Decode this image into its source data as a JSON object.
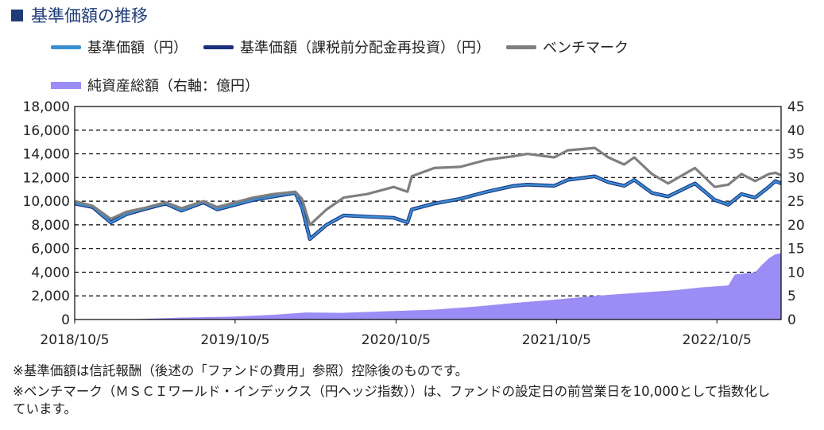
{
  "page": {
    "title": "基準価額の推移",
    "notes": [
      "※基準価額は信託報酬（後述の「ファンドの費用」参照）控除後のものです。",
      "※ベンチマーク（ＭＳＣＩワールド・インデックス（円ヘッジ指数））は、ファンドの設定日の前営業日を10,000として指数化し",
      "ています。"
    ]
  },
  "colors": {
    "nav": "#3a8fd1",
    "nav_reinvest": "#1a2f80",
    "benchmark": "#7f7f7f",
    "assets": "#9b8df5",
    "title_blue": "#1f3c78"
  },
  "chart_data": {
    "type": "line",
    "x_tick_labels": [
      "2018/10/5",
      "2019/10/5",
      "2020/10/5",
      "2021/10/5",
      "2022/10/5"
    ],
    "x_ticks": [
      "2018-10-05",
      "2019-10-05",
      "2020-10-05",
      "2021-10-05",
      "2022-10-05"
    ],
    "x_range": [
      "2018-10-05",
      "2023-02-28"
    ],
    "y_left": {
      "label": "円",
      "range": [
        0,
        18000
      ],
      "ticks": [
        "0",
        "2,000",
        "4,000",
        "6,000",
        "8,000",
        "10,000",
        "12,000",
        "14,000",
        "16,000",
        "18,000"
      ]
    },
    "y_right": {
      "label": "億円",
      "range": [
        0,
        45
      ],
      "ticks": [
        "0",
        "5",
        "10",
        "15",
        "20",
        "25",
        "30",
        "35",
        "40",
        "45"
      ]
    },
    "grid": "horizontal dashed",
    "series": [
      {
        "name": "基準価額（円）",
        "axis": "left",
        "points": [
          [
            "2018-10-05",
            9800
          ],
          [
            "2018-11-15",
            9500
          ],
          [
            "2018-12-26",
            8200
          ],
          [
            "2019-01-31",
            8900
          ],
          [
            "2019-03-10",
            9300
          ],
          [
            "2019-04-30",
            9800
          ],
          [
            "2019-06-05",
            9200
          ],
          [
            "2019-07-25",
            9900
          ],
          [
            "2019-08-25",
            9300
          ],
          [
            "2019-09-25",
            9600
          ],
          [
            "2019-11-15",
            10100
          ],
          [
            "2019-12-31",
            10400
          ],
          [
            "2020-02-19",
            10700
          ],
          [
            "2020-03-05",
            9500
          ],
          [
            "2020-03-23",
            6800
          ],
          [
            "2020-04-30",
            8000
          ],
          [
            "2020-06-08",
            8800
          ],
          [
            "2020-07-31",
            8700
          ],
          [
            "2020-09-30",
            8600
          ],
          [
            "2020-10-31",
            8200
          ],
          [
            "2020-11-10",
            9300
          ],
          [
            "2020-12-31",
            9800
          ],
          [
            "2021-02-28",
            10200
          ],
          [
            "2021-04-30",
            10800
          ],
          [
            "2021-06-30",
            11300
          ],
          [
            "2021-07-31",
            11400
          ],
          [
            "2021-09-30",
            11300
          ],
          [
            "2021-10-31",
            11800
          ],
          [
            "2021-12-31",
            12100
          ],
          [
            "2022-01-31",
            11600
          ],
          [
            "2022-03-08",
            11300
          ],
          [
            "2022-03-31",
            11800
          ],
          [
            "2022-05-10",
            10700
          ],
          [
            "2022-06-16",
            10400
          ],
          [
            "2022-08-16",
            11500
          ],
          [
            "2022-09-30",
            10100
          ],
          [
            "2022-10-31",
            9700
          ],
          [
            "2022-11-30",
            10600
          ],
          [
            "2022-12-31",
            10300
          ],
          [
            "2023-01-31",
            11200
          ],
          [
            "2023-02-15",
            11700
          ],
          [
            "2023-02-28",
            11500
          ]
        ]
      },
      {
        "name": "基準価額（課税前分配金再投資）（円）",
        "axis": "left",
        "points": [
          [
            "2018-10-05",
            9800
          ],
          [
            "2018-11-15",
            9500
          ],
          [
            "2018-12-26",
            8200
          ],
          [
            "2019-01-31",
            8900
          ],
          [
            "2019-03-10",
            9300
          ],
          [
            "2019-04-30",
            9800
          ],
          [
            "2019-06-05",
            9200
          ],
          [
            "2019-07-25",
            9900
          ],
          [
            "2019-08-25",
            9300
          ],
          [
            "2019-09-25",
            9600
          ],
          [
            "2019-11-15",
            10100
          ],
          [
            "2019-12-31",
            10400
          ],
          [
            "2020-02-19",
            10700
          ],
          [
            "2020-03-05",
            9500
          ],
          [
            "2020-03-23",
            6800
          ],
          [
            "2020-04-30",
            8000
          ],
          [
            "2020-06-08",
            8800
          ],
          [
            "2020-07-31",
            8700
          ],
          [
            "2020-09-30",
            8600
          ],
          [
            "2020-10-31",
            8200
          ],
          [
            "2020-11-10",
            9300
          ],
          [
            "2020-12-31",
            9800
          ],
          [
            "2021-02-28",
            10200
          ],
          [
            "2021-04-30",
            10800
          ],
          [
            "2021-06-30",
            11300
          ],
          [
            "2021-07-31",
            11400
          ],
          [
            "2021-09-30",
            11300
          ],
          [
            "2021-10-31",
            11800
          ],
          [
            "2021-12-31",
            12100
          ],
          [
            "2022-01-31",
            11600
          ],
          [
            "2022-03-08",
            11300
          ],
          [
            "2022-03-31",
            11800
          ],
          [
            "2022-05-10",
            10700
          ],
          [
            "2022-06-16",
            10400
          ],
          [
            "2022-08-16",
            11500
          ],
          [
            "2022-09-30",
            10100
          ],
          [
            "2022-10-31",
            9700
          ],
          [
            "2022-11-30",
            10600
          ],
          [
            "2022-12-31",
            10300
          ],
          [
            "2023-01-31",
            11200
          ],
          [
            "2023-02-15",
            11700
          ],
          [
            "2023-02-28",
            11500
          ]
        ]
      },
      {
        "name": "ベンチマーク",
        "axis": "left",
        "points": [
          [
            "2018-10-05",
            10000
          ],
          [
            "2018-11-15",
            9600
          ],
          [
            "2018-12-26",
            8500
          ],
          [
            "2019-01-31",
            9100
          ],
          [
            "2019-03-10",
            9400
          ],
          [
            "2019-04-30",
            9900
          ],
          [
            "2019-06-05",
            9400
          ],
          [
            "2019-07-25",
            10000
          ],
          [
            "2019-08-25",
            9500
          ],
          [
            "2019-09-25",
            9800
          ],
          [
            "2019-11-15",
            10300
          ],
          [
            "2019-12-31",
            10600
          ],
          [
            "2020-02-19",
            10800
          ],
          [
            "2020-03-05",
            10200
          ],
          [
            "2020-03-23",
            8000
          ],
          [
            "2020-04-30",
            9300
          ],
          [
            "2020-06-08",
            10300
          ],
          [
            "2020-07-31",
            10600
          ],
          [
            "2020-09-30",
            11200
          ],
          [
            "2020-10-31",
            10800
          ],
          [
            "2020-11-10",
            12100
          ],
          [
            "2020-12-31",
            12800
          ],
          [
            "2021-02-28",
            12900
          ],
          [
            "2021-04-30",
            13500
          ],
          [
            "2021-06-30",
            13800
          ],
          [
            "2021-07-31",
            14000
          ],
          [
            "2021-09-30",
            13700
          ],
          [
            "2021-10-31",
            14300
          ],
          [
            "2021-12-31",
            14500
          ],
          [
            "2022-01-31",
            13700
          ],
          [
            "2022-03-08",
            13100
          ],
          [
            "2022-03-31",
            13700
          ],
          [
            "2022-05-10",
            12300
          ],
          [
            "2022-06-16",
            11500
          ],
          [
            "2022-08-16",
            12800
          ],
          [
            "2022-09-30",
            11200
          ],
          [
            "2022-10-31",
            11400
          ],
          [
            "2022-11-30",
            12300
          ],
          [
            "2022-12-31",
            11700
          ],
          [
            "2023-01-31",
            12300
          ],
          [
            "2023-02-15",
            12400
          ],
          [
            "2023-02-28",
            12200
          ]
        ]
      },
      {
        "name": "純資産総額（右軸：億円）",
        "axis": "right",
        "type": "area",
        "points": [
          [
            "2018-10-05",
            0
          ],
          [
            "2019-03-01",
            0.1
          ],
          [
            "2019-06-01",
            0.4
          ],
          [
            "2019-10-01",
            0.6
          ],
          [
            "2020-01-01",
            1.0
          ],
          [
            "2020-03-15",
            1.5
          ],
          [
            "2020-06-01",
            1.4
          ],
          [
            "2020-10-01",
            1.8
          ],
          [
            "2021-01-01",
            2.1
          ],
          [
            "2021-04-01",
            2.7
          ],
          [
            "2021-07-01",
            3.5
          ],
          [
            "2021-10-01",
            4.2
          ],
          [
            "2022-01-01",
            5.0
          ],
          [
            "2022-04-01",
            5.6
          ],
          [
            "2022-07-01",
            6.2
          ],
          [
            "2022-09-01",
            6.8
          ],
          [
            "2022-10-31",
            7.2
          ],
          [
            "2022-11-15",
            9.5
          ],
          [
            "2022-12-31",
            10.0
          ],
          [
            "2023-01-15",
            11.5
          ],
          [
            "2023-02-01",
            13.0
          ],
          [
            "2023-02-15",
            13.8
          ],
          [
            "2023-02-28",
            14.0
          ]
        ]
      }
    ]
  }
}
